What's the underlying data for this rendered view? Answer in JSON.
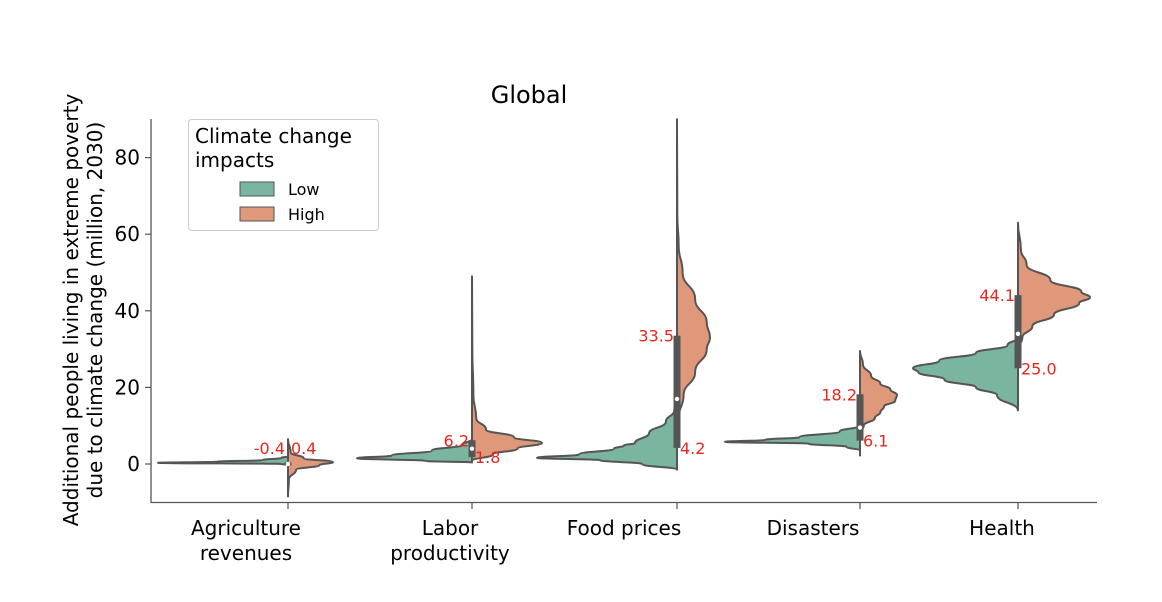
{
  "chart_data": {
    "type": "violin",
    "title": "Global",
    "xlabel": "",
    "ylabel_lines": [
      "Additional people living in extreme poverty",
      "due to climate change (million, 2030)"
    ],
    "ylim": [
      -10,
      90
    ],
    "yticks": [
      0,
      20,
      40,
      60,
      80
    ],
    "ytick_labels": [
      "0",
      "20",
      "40",
      "60",
      "80"
    ],
    "grid": false,
    "legend": {
      "title_lines": [
        "Climate change",
        "impacts"
      ],
      "placement": "top-left",
      "entries": [
        {
          "label": "Low",
          "color": "#7ab59f"
        },
        {
          "label": "High",
          "color": "#e0987a"
        }
      ]
    },
    "colors": {
      "low": "#7ab59f",
      "high": "#e0987a",
      "outline": "#555555",
      "annotation": "#e8261e"
    },
    "categories": [
      {
        "label_lines": [
          "Agriculture",
          "revenues"
        ],
        "low": {
          "annotation": "-0.4",
          "profile": [
            [
              -0.2,
              0
            ],
            [
              0,
              0.05
            ],
            [
              0.3,
              1.0
            ],
            [
              0.6,
              0.55
            ],
            [
              1.0,
              0.2
            ],
            [
              1.6,
              0.05
            ],
            [
              2.0,
              0
            ]
          ]
        },
        "high": {
          "annotation": "0.4",
          "profile": [
            [
              -8.5,
              0
            ],
            [
              -4,
              0.02
            ],
            [
              -1.5,
              0.18
            ],
            [
              -0.3,
              0.7
            ],
            [
              0.5,
              1.0
            ],
            [
              1.5,
              0.35
            ],
            [
              3,
              0.06
            ],
            [
              6.5,
              0
            ]
          ]
        },
        "box": {
          "q1": -0.4,
          "q3": 0.4,
          "median": 0.0,
          "min": -8.5,
          "max": 6.5
        }
      },
      {
        "label_lines": [
          "Labor",
          "productivity"
        ],
        "low": {
          "annotation": "1.8",
          "profile": [
            [
              0.4,
              0
            ],
            [
              0.8,
              0.4
            ],
            [
              1.5,
              1.0
            ],
            [
              2.2,
              0.7
            ],
            [
              3.5,
              0.35
            ],
            [
              5,
              0.08
            ],
            [
              6.5,
              0
            ]
          ]
        },
        "high": {
          "annotation": "6.2",
          "profile": [
            [
              0.8,
              0
            ],
            [
              2.5,
              0.3
            ],
            [
              4,
              0.65
            ],
            [
              5.5,
              1.0
            ],
            [
              7,
              0.6
            ],
            [
              9,
              0.2
            ],
            [
              12,
              0.06
            ],
            [
              18,
              0.02
            ],
            [
              30,
              0.005
            ],
            [
              49,
              0
            ]
          ]
        },
        "box": {
          "q1": 1.8,
          "q3": 6.2,
          "median": 4.0,
          "min": 0.4,
          "max": 49
        }
      },
      {
        "label_lines": [
          "Food prices"
        ],
        "low": {
          "annotation": "4.2",
          "profile": [
            [
              -1.5,
              0
            ],
            [
              0,
              0.25
            ],
            [
              1,
              0.55
            ],
            [
              1.6,
              1.0
            ],
            [
              2.5,
              0.7
            ],
            [
              4,
              0.45
            ],
            [
              4.8,
              0.38
            ],
            [
              5.5,
              0.3
            ],
            [
              8,
              0.2
            ],
            [
              11,
              0.08
            ],
            [
              14,
              0.02
            ],
            [
              17,
              0
            ]
          ]
        },
        "high": {
          "annotation": "33.5",
          "profile": [
            [
              5,
              0
            ],
            [
              12,
              0.05
            ],
            [
              18,
              0.2
            ],
            [
              24,
              0.55
            ],
            [
              30,
              0.9
            ],
            [
              33,
              1.0
            ],
            [
              37,
              0.9
            ],
            [
              43,
              0.55
            ],
            [
              50,
              0.17
            ],
            [
              57,
              0.05
            ],
            [
              65,
              0.01
            ],
            [
              90,
              0
            ]
          ]
        },
        "box": {
          "q1": 4.2,
          "q3": 33.5,
          "median": 17.0,
          "min": -1.5,
          "max": 90
        }
      },
      {
        "label_lines": [
          "Disasters"
        ],
        "low": {
          "annotation": "6.1",
          "profile": [
            [
              3.5,
              0
            ],
            [
              4.5,
              0.1
            ],
            [
              5.3,
              0.38
            ],
            [
              5.8,
              1.0
            ],
            [
              6.3,
              0.7
            ],
            [
              7,
              0.45
            ],
            [
              8.5,
              0.15
            ],
            [
              10,
              0
            ]
          ]
        },
        "high": {
          "annotation": "18.2",
          "profile": [
            [
              8,
              0
            ],
            [
              10,
              0.1
            ],
            [
              12,
              0.4
            ],
            [
              13.5,
              0.55
            ],
            [
              15,
              0.65
            ],
            [
              16.5,
              0.95
            ],
            [
              18,
              1.0
            ],
            [
              19.5,
              0.82
            ],
            [
              21,
              0.55
            ],
            [
              23,
              0.3
            ],
            [
              26,
              0.08
            ],
            [
              29.5,
              0
            ]
          ]
        },
        "box": {
          "q1": 6.1,
          "q3": 18.2,
          "median": 9.5,
          "min": 2,
          "max": 29.5
        }
      },
      {
        "label_lines": [
          "Health"
        ],
        "low": {
          "annotation": "25.0",
          "profile": [
            [
              14,
              0
            ],
            [
              18,
              0.2
            ],
            [
              20,
              0.4
            ],
            [
              22,
              0.7
            ],
            [
              24,
              0.95
            ],
            [
              25,
              1.0
            ],
            [
              27,
              0.75
            ],
            [
              29,
              0.4
            ],
            [
              31,
              0.1
            ],
            [
              33,
              0
            ]
          ]
        },
        "high": {
          "annotation": "44.1",
          "profile": [
            [
              30,
              0
            ],
            [
              33,
              0.06
            ],
            [
              36,
              0.2
            ],
            [
              39,
              0.5
            ],
            [
              42,
              0.85
            ],
            [
              43.5,
              1.0
            ],
            [
              45,
              0.88
            ],
            [
              48,
              0.45
            ],
            [
              52,
              0.12
            ],
            [
              56,
              0.04
            ],
            [
              63,
              0
            ]
          ]
        },
        "box": {
          "q1": 25.0,
          "q3": 44.1,
          "median": 34.0,
          "min": 14,
          "max": 63
        }
      }
    ]
  }
}
